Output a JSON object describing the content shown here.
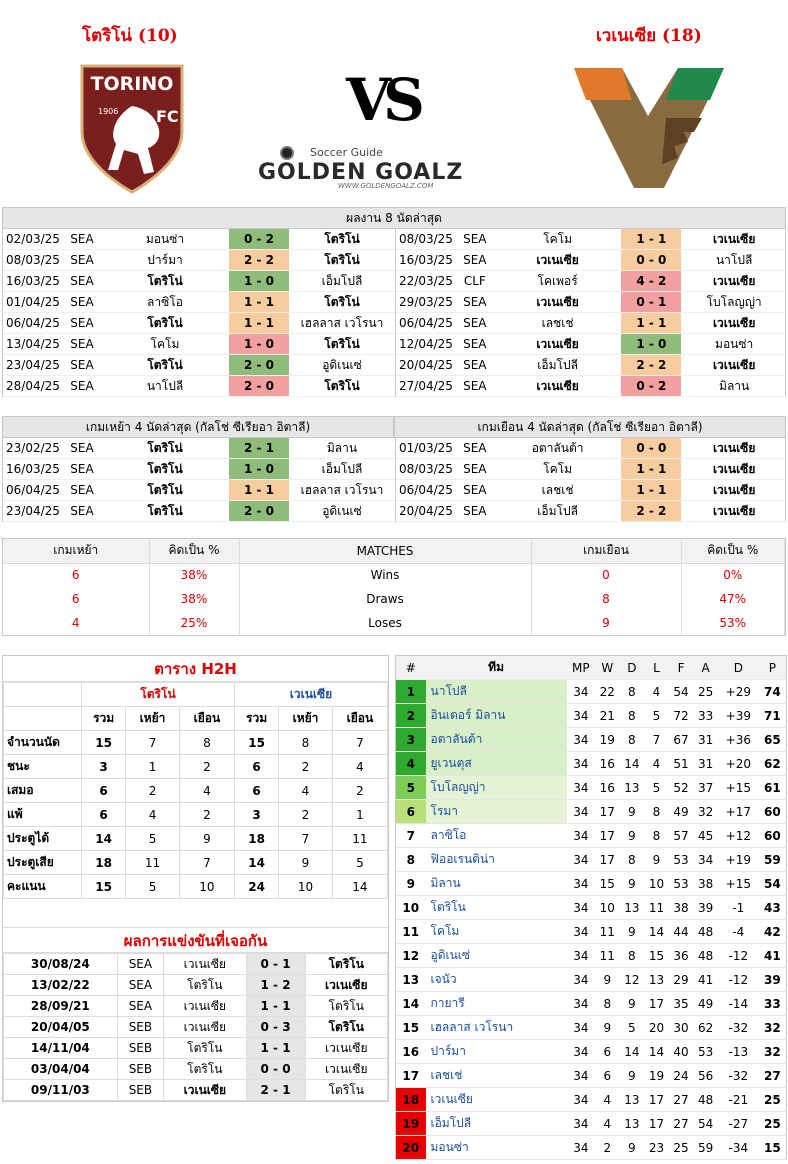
{
  "header": {
    "home_title": "โตริโน่ (10)",
    "away_title": "เวเนเซีย (18)",
    "vs": "VS",
    "brand_top": "Soccer Guide",
    "brand_main": "GOLDEN GOALZ",
    "brand_url": "WWW.GOLDENGOALZ.COM",
    "home_logo_text": "TORINO",
    "home_logo_year": "1906",
    "home_logo_fc": "FC"
  },
  "last8": {
    "title": "ผลงาน 8 นัดล่าสุด",
    "home": [
      {
        "date": "02/03/25",
        "comp": "SEA",
        "home": "มอนซ่า",
        "score": "0 - 2",
        "away": "โตริโน่",
        "res": "w",
        "hb": false,
        "ab": true
      },
      {
        "date": "08/03/25",
        "comp": "SEA",
        "home": "ปาร์มา",
        "score": "2 - 2",
        "away": "โตริโน่",
        "res": "d",
        "hb": false,
        "ab": true
      },
      {
        "date": "16/03/25",
        "comp": "SEA",
        "home": "โตริโน่",
        "score": "1 - 0",
        "away": "เอ็มโปลี",
        "res": "w",
        "hb": true,
        "ab": false
      },
      {
        "date": "01/04/25",
        "comp": "SEA",
        "home": "ลาซิโอ",
        "score": "1 - 1",
        "away": "โตริโน่",
        "res": "d",
        "hb": false,
        "ab": true
      },
      {
        "date": "06/04/25",
        "comp": "SEA",
        "home": "โตริโน่",
        "score": "1 - 1",
        "away": "เฮลลาส เวโรนา",
        "res": "d",
        "hb": true,
        "ab": false
      },
      {
        "date": "13/04/25",
        "comp": "SEA",
        "home": "โคโม",
        "score": "1 - 0",
        "away": "โตริโน่",
        "res": "l",
        "hb": false,
        "ab": true
      },
      {
        "date": "23/04/25",
        "comp": "SEA",
        "home": "โตริโน่",
        "score": "2 - 0",
        "away": "อูดิเนเซ่",
        "res": "w",
        "hb": true,
        "ab": false
      },
      {
        "date": "28/04/25",
        "comp": "SEA",
        "home": "นาโปลี",
        "score": "2 - 0",
        "away": "โตริโน่",
        "res": "l",
        "hb": false,
        "ab": true
      }
    ],
    "away": [
      {
        "date": "08/03/25",
        "comp": "SEA",
        "home": "โคโม",
        "score": "1 - 1",
        "away": "เวเนเซีย",
        "res": "d",
        "hb": false,
        "ab": true
      },
      {
        "date": "16/03/25",
        "comp": "SEA",
        "home": "เวเนเซีย",
        "score": "0 - 0",
        "away": "นาโปลี",
        "res": "d",
        "hb": true,
        "ab": false
      },
      {
        "date": "22/03/25",
        "comp": "CLF",
        "home": "โคเพอร์",
        "score": "4 - 2",
        "away": "เวเนเซีย",
        "res": "l",
        "hb": false,
        "ab": true
      },
      {
        "date": "29/03/25",
        "comp": "SEA",
        "home": "เวเนเซีย",
        "score": "0 - 1",
        "away": "โบโลญญ่า",
        "res": "l",
        "hb": true,
        "ab": false
      },
      {
        "date": "06/04/25",
        "comp": "SEA",
        "home": "เลชเช่",
        "score": "1 - 1",
        "away": "เวเนเซีย",
        "res": "d",
        "hb": false,
        "ab": true
      },
      {
        "date": "12/04/25",
        "comp": "SEA",
        "home": "เวเนเซีย",
        "score": "1 - 0",
        "away": "มอนซ่า",
        "res": "w",
        "hb": true,
        "ab": false
      },
      {
        "date": "20/04/25",
        "comp": "SEA",
        "home": "เอ็มโปลี",
        "score": "2 - 2",
        "away": "เวเนเซีย",
        "res": "d",
        "hb": false,
        "ab": true
      },
      {
        "date": "27/04/25",
        "comp": "SEA",
        "home": "เวเนเซีย",
        "score": "0 - 2",
        "away": "มิลาน",
        "res": "l",
        "hb": true,
        "ab": false
      }
    ]
  },
  "last4": {
    "home_title": "เกมเหย้า 4 นัดล่าสุด (กัลโช่ ซีเรียอา อิตาลี)",
    "away_title": "เกมเยือน 4 นัดล่าสุด (กัลโช่ ซีเรียอา อิตาลี)",
    "home": [
      {
        "date": "23/02/25",
        "comp": "SEA",
        "home": "โตริโน่",
        "score": "2 - 1",
        "away": "มิลาน",
        "res": "w",
        "hb": true,
        "ab": false
      },
      {
        "date": "16/03/25",
        "comp": "SEA",
        "home": "โตริโน่",
        "score": "1 - 0",
        "away": "เอ็มโปลี",
        "res": "w",
        "hb": true,
        "ab": false
      },
      {
        "date": "06/04/25",
        "comp": "SEA",
        "home": "โตริโน่",
        "score": "1 - 1",
        "away": "เฮลลาส เวโรนา",
        "res": "d",
        "hb": true,
        "ab": false
      },
      {
        "date": "23/04/25",
        "comp": "SEA",
        "home": "โตริโน่",
        "score": "2 - 0",
        "away": "อูดิเนเซ่",
        "res": "w",
        "hb": true,
        "ab": false
      }
    ],
    "away": [
      {
        "date": "01/03/25",
        "comp": "SEA",
        "home": "อตาลันต้า",
        "score": "0 - 0",
        "away": "เวเนเซีย",
        "res": "d",
        "hb": false,
        "ab": true
      },
      {
        "date": "08/03/25",
        "comp": "SEA",
        "home": "โคโม",
        "score": "1 - 1",
        "away": "เวเนเซีย",
        "res": "d",
        "hb": false,
        "ab": true
      },
      {
        "date": "06/04/25",
        "comp": "SEA",
        "home": "เลชเช่",
        "score": "1 - 1",
        "away": "เวเนเซีย",
        "res": "d",
        "hb": false,
        "ab": true
      },
      {
        "date": "20/04/25",
        "comp": "SEA",
        "home": "เอ็มโปลี",
        "score": "2 - 2",
        "away": "เวเนเซีย",
        "res": "d",
        "hb": false,
        "ab": true
      }
    ]
  },
  "summary": {
    "h_home": "เกมเหย้า",
    "h_pct": "คิดเป็น  %",
    "h_matches": "MATCHES",
    "h_away": "เกมเยือน",
    "h_pct2": "คิดเป็น  %",
    "rows": [
      {
        "hv": "6",
        "hp": "38%",
        "label": "Wins",
        "av": "0",
        "ap": "0%"
      },
      {
        "hv": "6",
        "hp": "38%",
        "label": "Draws",
        "av": "8",
        "ap": "47%"
      },
      {
        "hv": "4",
        "hp": "25%",
        "label": "Loses",
        "av": "9",
        "ap": "53%"
      }
    ]
  },
  "h2h": {
    "title": "ตาราง H2H",
    "home_team": "โตริโน่",
    "away_team": "เวเนเซีย",
    "cols": [
      "รวม",
      "เหย้า",
      "เยือน",
      "รวม",
      "เหย้า",
      "เยือน"
    ],
    "rows": [
      {
        "label": "จำนวนนัด",
        "v": [
          "15",
          "7",
          "8",
          "15",
          "8",
          "7"
        ]
      },
      {
        "label": "ชนะ",
        "v": [
          "3",
          "1",
          "2",
          "6",
          "2",
          "4"
        ]
      },
      {
        "label": "เสมอ",
        "v": [
          "6",
          "2",
          "4",
          "6",
          "4",
          "2"
        ]
      },
      {
        "label": "แพ้",
        "v": [
          "6",
          "4",
          "2",
          "3",
          "2",
          "1"
        ]
      },
      {
        "label": "ประตูได้",
        "v": [
          "14",
          "5",
          "9",
          "18",
          "7",
          "11"
        ]
      },
      {
        "label": "ประตูเสีย",
        "v": [
          "18",
          "11",
          "7",
          "14",
          "9",
          "5"
        ]
      },
      {
        "label": "คะแนน",
        "v": [
          "15",
          "5",
          "10",
          "24",
          "10",
          "14"
        ]
      }
    ],
    "past_title": "ผลการแข่งขันที่เจอกัน",
    "past": [
      {
        "date": "30/08/24",
        "comp": "SEA",
        "home": "เวเนเซีย",
        "score": "0 - 1",
        "away": "โตริโน",
        "hb": false,
        "ab": true
      },
      {
        "date": "13/02/22",
        "comp": "SEA",
        "home": "โตริโน",
        "score": "1 - 2",
        "away": "เวเนเซีย",
        "hb": false,
        "ab": true
      },
      {
        "date": "28/09/21",
        "comp": "SEA",
        "home": "เวเนเซีย",
        "score": "1 - 1",
        "away": "โตริโน",
        "hb": false,
        "ab": false
      },
      {
        "date": "20/04/05",
        "comp": "SEB",
        "home": "เวเนเซีย",
        "score": "0 - 3",
        "away": "โตริโน",
        "hb": false,
        "ab": true
      },
      {
        "date": "14/11/04",
        "comp": "SEB",
        "home": "โตริโน",
        "score": "1 - 1",
        "away": "เวเนเซีย",
        "hb": false,
        "ab": false
      },
      {
        "date": "03/04/04",
        "comp": "SEB",
        "home": "โตริโน",
        "score": "0 - 0",
        "away": "เวเนเซีย",
        "hb": false,
        "ab": false
      },
      {
        "date": "09/11/03",
        "comp": "SEB",
        "home": "เวเนเซีย",
        "score": "2 - 1",
        "away": "โตริโน",
        "hb": true,
        "ab": false
      }
    ]
  },
  "standings": {
    "cols": [
      "#",
      "ทีม",
      "MP",
      "W",
      "D",
      "L",
      "F",
      "A",
      "D",
      "P"
    ],
    "rows": [
      {
        "pos": "1",
        "team": "นาโปลี",
        "mp": "34",
        "w": "22",
        "d": "8",
        "l": "4",
        "f": "54",
        "a": "25",
        "gd": "+29",
        "p": "74",
        "bg": "#2eaa2e"
      },
      {
        "pos": "2",
        "team": "อินเตอร์ มิลาน",
        "mp": "34",
        "w": "21",
        "d": "8",
        "l": "5",
        "f": "72",
        "a": "33",
        "gd": "+39",
        "p": "71",
        "bg": "#2eaa2e"
      },
      {
        "pos": "3",
        "team": "อตาลันต้า",
        "mp": "34",
        "w": "19",
        "d": "8",
        "l": "7",
        "f": "67",
        "a": "31",
        "gd": "+36",
        "p": "65",
        "bg": "#2eaa2e"
      },
      {
        "pos": "4",
        "team": "ยูเวนตุส",
        "mp": "34",
        "w": "16",
        "d": "14",
        "l": "4",
        "f": "51",
        "a": "31",
        "gd": "+20",
        "p": "62",
        "bg": "#2eaa2e"
      },
      {
        "pos": "5",
        "team": "โบโลญญ่า",
        "mp": "34",
        "w": "16",
        "d": "13",
        "l": "5",
        "f": "52",
        "a": "37",
        "gd": "+15",
        "p": "61",
        "bg": "#7ccf55"
      },
      {
        "pos": "6",
        "team": "โรมา",
        "mp": "34",
        "w": "17",
        "d": "9",
        "l": "8",
        "f": "49",
        "a": "32",
        "gd": "+17",
        "p": "60",
        "bg": "#b8e07a"
      },
      {
        "pos": "7",
        "team": "ลาซิโอ",
        "mp": "34",
        "w": "17",
        "d": "9",
        "l": "8",
        "f": "57",
        "a": "45",
        "gd": "+12",
        "p": "60",
        "bg": ""
      },
      {
        "pos": "8",
        "team": "ฟิออเรนติน่า",
        "mp": "34",
        "w": "17",
        "d": "8",
        "l": "9",
        "f": "53",
        "a": "34",
        "gd": "+19",
        "p": "59",
        "bg": ""
      },
      {
        "pos": "9",
        "team": "มิลาน",
        "mp": "34",
        "w": "15",
        "d": "9",
        "l": "10",
        "f": "53",
        "a": "38",
        "gd": "+15",
        "p": "54",
        "bg": ""
      },
      {
        "pos": "10",
        "team": "โตริโน",
        "mp": "34",
        "w": "10",
        "d": "13",
        "l": "11",
        "f": "38",
        "a": "39",
        "gd": "-1",
        "p": "43",
        "bg": ""
      },
      {
        "pos": "11",
        "team": "โคโม",
        "mp": "34",
        "w": "11",
        "d": "9",
        "l": "14",
        "f": "44",
        "a": "48",
        "gd": "-4",
        "p": "42",
        "bg": ""
      },
      {
        "pos": "12",
        "team": "อูดิเนเซ่",
        "mp": "34",
        "w": "11",
        "d": "8",
        "l": "15",
        "f": "36",
        "a": "48",
        "gd": "-12",
        "p": "41",
        "bg": ""
      },
      {
        "pos": "13",
        "team": "เจนัว",
        "mp": "34",
        "w": "9",
        "d": "12",
        "l": "13",
        "f": "29",
        "a": "41",
        "gd": "-12",
        "p": "39",
        "bg": ""
      },
      {
        "pos": "14",
        "team": "กายารี",
        "mp": "34",
        "w": "8",
        "d": "9",
        "l": "17",
        "f": "35",
        "a": "49",
        "gd": "-14",
        "p": "33",
        "bg": ""
      },
      {
        "pos": "15",
        "team": "เฮลลาส เวโรนา",
        "mp": "34",
        "w": "9",
        "d": "5",
        "l": "20",
        "f": "30",
        "a": "62",
        "gd": "-32",
        "p": "32",
        "bg": ""
      },
      {
        "pos": "16",
        "team": "ปาร์มา",
        "mp": "34",
        "w": "6",
        "d": "14",
        "l": "14",
        "f": "40",
        "a": "53",
        "gd": "-13",
        "p": "32",
        "bg": ""
      },
      {
        "pos": "17",
        "team": "เลชเช่",
        "mp": "34",
        "w": "6",
        "d": "9",
        "l": "19",
        "f": "24",
        "a": "56",
        "gd": "-32",
        "p": "27",
        "bg": ""
      },
      {
        "pos": "18",
        "team": "เวเนเซีย",
        "mp": "34",
        "w": "4",
        "d": "13",
        "l": "17",
        "f": "27",
        "a": "48",
        "gd": "-21",
        "p": "25",
        "bg": "#e80000"
      },
      {
        "pos": "19",
        "team": "เอ็มโปลี",
        "mp": "34",
        "w": "4",
        "d": "13",
        "l": "17",
        "f": "27",
        "a": "54",
        "gd": "-27",
        "p": "25",
        "bg": "#e80000"
      },
      {
        "pos": "20",
        "team": "มอนซ่า",
        "mp": "34",
        "w": "2",
        "d": "9",
        "l": "23",
        "f": "25",
        "a": "59",
        "gd": "-34",
        "p": "15",
        "bg": "#e80000"
      }
    ]
  }
}
